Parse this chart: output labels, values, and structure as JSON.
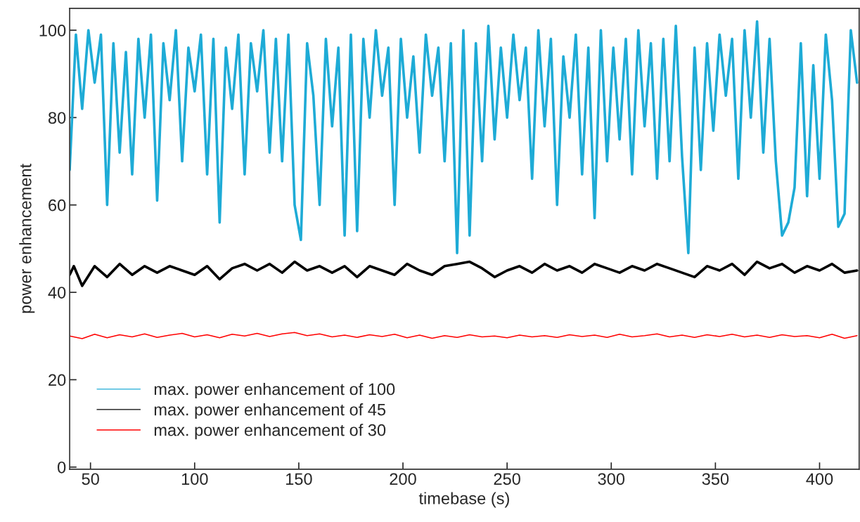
{
  "chart_data": {
    "type": "line",
    "xlabel": "timebase (s)",
    "ylabel": "power enhancement",
    "xlim": [
      40,
      419
    ],
    "ylim": [
      -0.5,
      105
    ],
    "xticks": [
      50,
      100,
      150,
      200,
      250,
      300,
      350,
      400
    ],
    "yticks": [
      0,
      20,
      40,
      60,
      80,
      100
    ],
    "grid": false,
    "legend": "bottom left",
    "marker": "none",
    "line_style": "solid",
    "series": [
      {
        "name": "max. power enhancement of 100",
        "color": "#1eabd6",
        "x": [
          40,
          43,
          46,
          49,
          52,
          55,
          58,
          61,
          64,
          67,
          70,
          73,
          76,
          79,
          82,
          85,
          88,
          91,
          94,
          97,
          100,
          103,
          106,
          109,
          112,
          115,
          118,
          121,
          124,
          127,
          130,
          133,
          136,
          139,
          142,
          145,
          148,
          151,
          154,
          157,
          160,
          163,
          166,
          169,
          172,
          175,
          178,
          181,
          184,
          187,
          190,
          193,
          196,
          199,
          202,
          205,
          208,
          211,
          214,
          217,
          220,
          223,
          226,
          229,
          232,
          235,
          238,
          241,
          244,
          247,
          250,
          253,
          256,
          259,
          262,
          265,
          268,
          271,
          274,
          277,
          280,
          283,
          286,
          289,
          292,
          295,
          298,
          301,
          304,
          307,
          310,
          313,
          316,
          319,
          322,
          325,
          328,
          331,
          334,
          337,
          340,
          343,
          346,
          349,
          352,
          355,
          358,
          361,
          364,
          367,
          370,
          373,
          376,
          379,
          382,
          385,
          388,
          391,
          394,
          397,
          400,
          403,
          406,
          409,
          412,
          415,
          418
        ],
        "values": [
          68,
          99,
          82,
          100,
          88,
          99,
          60,
          97,
          72,
          95,
          67,
          98,
          80,
          99,
          61,
          97,
          84,
          100,
          70,
          96,
          86,
          99,
          67,
          98,
          56,
          96,
          82,
          99,
          67,
          97,
          86,
          100,
          72,
          98,
          70,
          99,
          60,
          52,
          97,
          85,
          60,
          98,
          78,
          96,
          53,
          99,
          54,
          98,
          80,
          100,
          85,
          96,
          60,
          98,
          80,
          94,
          72,
          99,
          85,
          96,
          70,
          97,
          49,
          100,
          53,
          97,
          70,
          101,
          75,
          96,
          80,
          99,
          84,
          96,
          66,
          100,
          78,
          98,
          60,
          94,
          80,
          99,
          67,
          96,
          57,
          100,
          70,
          96,
          75,
          98,
          67,
          100,
          78,
          97,
          66,
          98,
          70,
          101,
          71,
          49,
          96,
          68,
          97,
          77,
          99,
          85,
          98,
          66,
          100,
          80,
          102,
          72,
          98,
          70,
          53,
          56,
          64,
          97,
          62,
          92,
          66,
          99,
          84,
          55,
          58,
          100,
          88
        ]
      },
      {
        "name": "max. power enhancement of 45",
        "color": "#000000",
        "x": [
          40,
          42,
          46,
          52,
          58,
          64,
          70,
          76,
          82,
          88,
          94,
          100,
          106,
          112,
          118,
          124,
          130,
          136,
          142,
          148,
          154,
          160,
          166,
          172,
          178,
          184,
          190,
          196,
          202,
          208,
          214,
          220,
          226,
          232,
          238,
          244,
          250,
          256,
          262,
          268,
          274,
          280,
          286,
          292,
          298,
          304,
          310,
          316,
          322,
          328,
          334,
          340,
          346,
          352,
          358,
          364,
          370,
          376,
          382,
          388,
          394,
          400,
          406,
          412,
          418
        ],
        "values": [
          44,
          46,
          41.5,
          46,
          43.5,
          46.5,
          44,
          46,
          44.5,
          46,
          45,
          44,
          46,
          43,
          45.5,
          46.5,
          45,
          46.5,
          44.5,
          47,
          45,
          46,
          44.5,
          46,
          43.5,
          46,
          45,
          44,
          46.5,
          45,
          44,
          46,
          46.5,
          47,
          45.5,
          43.5,
          45,
          46,
          44.5,
          46.5,
          45,
          46,
          44.5,
          46.5,
          45.5,
          44.5,
          46,
          45,
          46.5,
          45.5,
          44.5,
          43.5,
          46,
          45,
          46.5,
          44,
          47,
          45.5,
          46.5,
          44.5,
          46,
          45,
          46.5,
          44.5,
          45
        ]
      },
      {
        "name": "max. power enhancement of 30",
        "color": "#ff0000",
        "x": [
          40,
          46,
          52,
          58,
          64,
          70,
          76,
          82,
          88,
          94,
          100,
          106,
          112,
          118,
          124,
          130,
          136,
          142,
          148,
          154,
          160,
          166,
          172,
          178,
          184,
          190,
          196,
          202,
          208,
          214,
          220,
          226,
          232,
          238,
          244,
          250,
          256,
          262,
          268,
          274,
          280,
          286,
          292,
          298,
          304,
          310,
          316,
          322,
          328,
          334,
          340,
          346,
          352,
          358,
          364,
          370,
          376,
          382,
          388,
          394,
          400,
          406,
          412,
          418
        ],
        "values": [
          30,
          29.4,
          30.4,
          29.6,
          30.3,
          29.8,
          30.5,
          29.7,
          30.2,
          30.6,
          29.8,
          30.3,
          29.6,
          30.4,
          30,
          30.6,
          29.9,
          30.5,
          30.8,
          30.1,
          30.5,
          29.8,
          30.2,
          29.7,
          30.3,
          29.9,
          30.4,
          29.6,
          30.2,
          29.5,
          30.1,
          29.7,
          30.3,
          29.8,
          30,
          29.6,
          30.2,
          29.8,
          30.1,
          29.7,
          30.3,
          29.9,
          30.2,
          29.7,
          30.4,
          29.8,
          30.1,
          30.5,
          29.8,
          30.2,
          29.7,
          30.3,
          29.9,
          30.4,
          29.8,
          30.2,
          29.7,
          30.3,
          29.9,
          30.1,
          29.6,
          30.4,
          29.5,
          30.1
        ]
      }
    ]
  }
}
